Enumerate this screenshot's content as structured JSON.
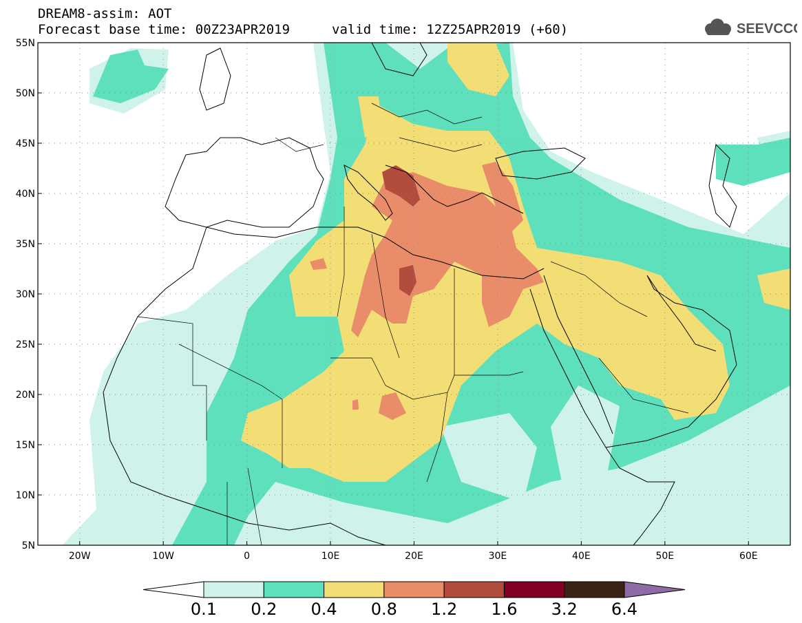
{
  "title": {
    "line1": "DREAM8-assim: AOT",
    "line2": "Forecast base time: 00Z23APR2019",
    "line3": "valid time: 12Z25APR2019 (+60)"
  },
  "logo": {
    "text": "SEEVCCC",
    "icon": "cloud-icon"
  },
  "map": {
    "lon_range": [
      -25,
      65
    ],
    "lat_range": [
      5,
      55
    ],
    "lat_ticks": [
      {
        "value": 55,
        "label": "55N"
      },
      {
        "value": 50,
        "label": "50N"
      },
      {
        "value": 45,
        "label": "45N"
      },
      {
        "value": 40,
        "label": "40N"
      },
      {
        "value": 35,
        "label": "35N"
      },
      {
        "value": 30,
        "label": "30N"
      },
      {
        "value": 25,
        "label": "25N"
      },
      {
        "value": 20,
        "label": "20N"
      },
      {
        "value": 15,
        "label": "15N"
      },
      {
        "value": 10,
        "label": "10N"
      },
      {
        "value": 5,
        "label": "5N"
      }
    ],
    "lon_ticks": [
      {
        "value": -20,
        "label": "20W"
      },
      {
        "value": -10,
        "label": "10W"
      },
      {
        "value": 0,
        "label": "0"
      },
      {
        "value": 10,
        "label": "10E"
      },
      {
        "value": 20,
        "label": "20E"
      },
      {
        "value": 30,
        "label": "30E"
      },
      {
        "value": 40,
        "label": "40E"
      },
      {
        "value": 50,
        "label": "50E"
      },
      {
        "value": 60,
        "label": "60E"
      }
    ]
  },
  "colorbar": {
    "colors": [
      "#ffffff",
      "#cff3ea",
      "#5ee0bd",
      "#f2de74",
      "#e98c6a",
      "#b24c3d",
      "#800024",
      "#3b2416",
      "#8e6aa6"
    ],
    "labels": [
      "0.1",
      "0.2",
      "0.4",
      "0.8",
      "1.2",
      "1.6",
      "3.2",
      "6.4"
    ]
  }
}
